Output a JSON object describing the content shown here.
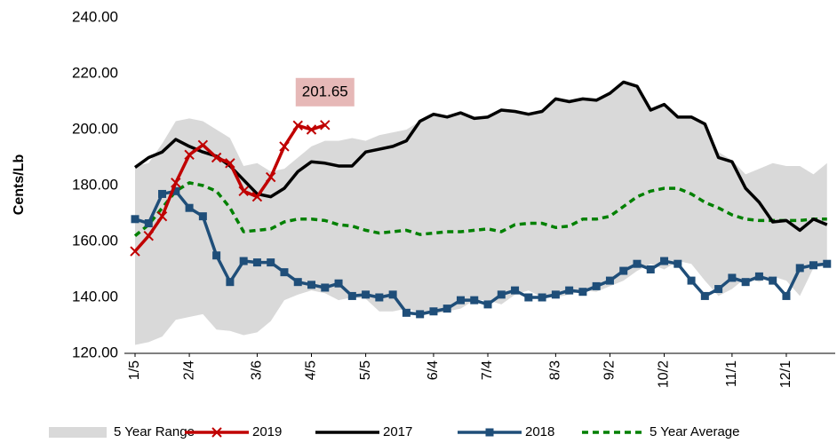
{
  "chart_data": {
    "type": "line",
    "y_label": "Cents/Lb",
    "ylim": [
      120,
      240
    ],
    "yticks": [
      {
        "value": 120,
        "label": "120.00"
      },
      {
        "value": 140,
        "label": "140.00"
      },
      {
        "value": 160,
        "label": "160.00"
      },
      {
        "value": 180,
        "label": "180.00"
      },
      {
        "value": 200,
        "label": "200.00"
      },
      {
        "value": 220,
        "label": "220.00"
      },
      {
        "value": 240,
        "label": "240.00"
      }
    ],
    "categories": [
      "1/5",
      null,
      null,
      null,
      "2/4",
      null,
      null,
      null,
      null,
      "3/6",
      null,
      null,
      null,
      "4/5",
      null,
      null,
      null,
      "5/5",
      null,
      null,
      null,
      null,
      "6/4",
      null,
      null,
      null,
      "7/4",
      null,
      null,
      null,
      null,
      "8/3",
      null,
      null,
      null,
      "9/2",
      null,
      null,
      null,
      "10/2",
      null,
      null,
      null,
      null,
      "11/1",
      null,
      null,
      null,
      "12/1",
      null,
      null,
      null
    ],
    "range": {
      "name": "5 Year Range",
      "color": "#d9d9d9",
      "high": [
        187,
        188,
        195,
        203,
        204,
        203,
        200,
        197,
        187,
        188,
        185,
        186,
        190,
        194,
        196,
        196,
        197,
        196,
        198,
        199,
        200,
        203,
        205.5,
        204.5,
        206,
        204,
        204.5,
        207,
        206.5,
        205.5,
        206.5,
        211,
        210,
        211,
        210.5,
        213,
        217,
        215.5,
        207,
        209,
        204.5,
        204.5,
        202,
        192,
        189,
        184,
        186,
        188,
        187,
        187,
        184,
        188
      ],
      "low": [
        123,
        124,
        126,
        132,
        133,
        134,
        128.5,
        128,
        126.5,
        127.5,
        131.5,
        139,
        141,
        142.5,
        141.5,
        139,
        140,
        139.5,
        135,
        135,
        136,
        134.5,
        134,
        135,
        136,
        139,
        139,
        137.5,
        141,
        142.5,
        140,
        140,
        141,
        142.5,
        142,
        144,
        146,
        149.5,
        152,
        150,
        153,
        152,
        146,
        140.5,
        143,
        147,
        145.5,
        147.5,
        146,
        140.5,
        150.5,
        151.5
      ]
    },
    "series": [
      {
        "name": "2019",
        "color": "#c00000",
        "marker": "x",
        "dash": false,
        "values": [
          156.5,
          162,
          169,
          181,
          191,
          194.5,
          190,
          188,
          178,
          176,
          183,
          194,
          201.5,
          200,
          201.65,
          null,
          null,
          null,
          null,
          null,
          null,
          null,
          null,
          null,
          null,
          null,
          null,
          null,
          null,
          null,
          null,
          null,
          null,
          null,
          null,
          null,
          null,
          null,
          null,
          null,
          null,
          null,
          null,
          null,
          null,
          null,
          null,
          null,
          null,
          null,
          null,
          null
        ]
      },
      {
        "name": "2017",
        "color": "#000000",
        "marker": "none",
        "dash": false,
        "values": [
          186.5,
          190,
          192,
          196.5,
          194,
          192,
          190.5,
          187,
          182,
          177,
          176,
          179,
          185,
          188.5,
          188,
          187,
          187,
          192,
          193,
          194,
          196,
          203,
          205.5,
          204.5,
          206,
          204,
          204.5,
          207,
          206.5,
          205.5,
          206.5,
          211,
          210,
          211,
          210.5,
          213,
          217,
          215.5,
          207,
          209,
          204.5,
          204.5,
          202,
          190,
          188.5,
          179,
          174,
          167,
          167.5,
          164,
          168,
          166
        ]
      },
      {
        "name": "2018",
        "color": "#1f4e79",
        "marker": "square",
        "dash": false,
        "values": [
          168,
          166.5,
          177,
          178,
          172,
          169,
          155,
          145.5,
          153,
          152.5,
          152.5,
          149,
          145.5,
          144.5,
          143.5,
          145,
          140.5,
          141,
          140,
          141,
          134.5,
          134,
          135,
          136,
          139,
          139,
          137.5,
          141,
          142.5,
          140,
          140,
          141,
          142.5,
          142,
          144,
          146,
          149.5,
          152,
          150,
          153,
          152,
          146,
          140.5,
          143,
          147,
          145.5,
          147.5,
          146,
          140.5,
          150.5,
          151.5,
          152
        ]
      },
      {
        "name": "5 Year Average",
        "color": "#008000",
        "marker": "none",
        "dash": true,
        "values": [
          162,
          166,
          172,
          178,
          181,
          180,
          178,
          172,
          163.5,
          164,
          164.5,
          167,
          168,
          168,
          167.5,
          166,
          165.5,
          164,
          163,
          163.5,
          164,
          162.5,
          163,
          163.5,
          163.5,
          164,
          164.5,
          163.5,
          166,
          166.5,
          166.5,
          165,
          165.5,
          168,
          168,
          169,
          172.5,
          176,
          178,
          179,
          179,
          177,
          174,
          172,
          169.5,
          168,
          167.5,
          167.5,
          167.5,
          167.5,
          168,
          168
        ]
      }
    ]
  }
}
